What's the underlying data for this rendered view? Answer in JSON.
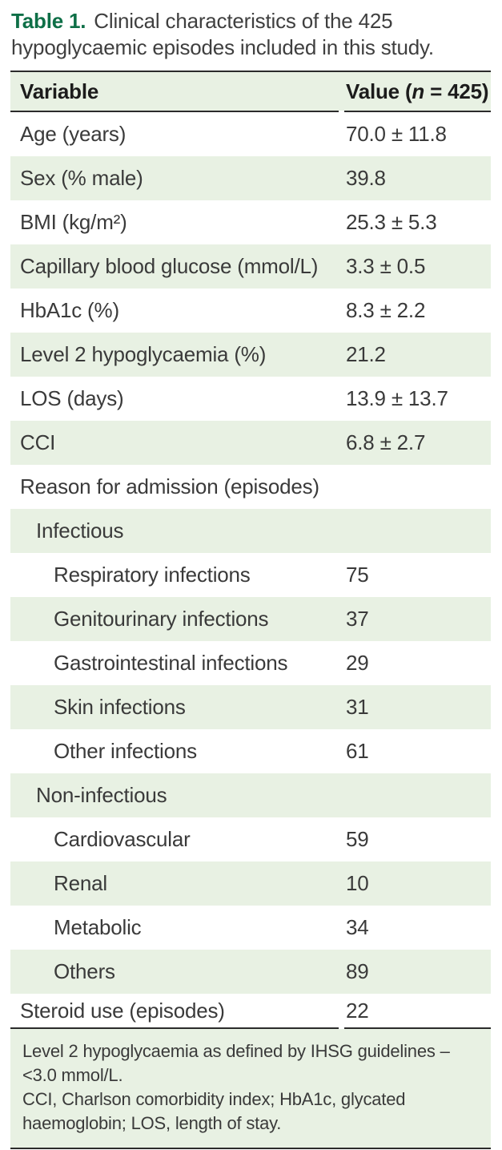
{
  "colors": {
    "accent_green": "#0e6f47",
    "row_shade_green": "#e8f1e3",
    "rule_dark": "#2b2b2b",
    "body_text": "#3a3a3a"
  },
  "caption": {
    "label": "Table 1.",
    "text": "Clinical characteristics of the 425 hypoglycaemic episodes included in this study."
  },
  "table": {
    "header": {
      "variable": "Variable",
      "value_prefix": "Value (",
      "value_n": "n",
      "value_suffix": " = 425)"
    },
    "rows": [
      {
        "label": "Age (years)",
        "value": "70.0 ± 11.8",
        "indent": 0,
        "shaded": false
      },
      {
        "label": "Sex (% male)",
        "value": "39.8",
        "indent": 0,
        "shaded": true
      },
      {
        "label": "BMI (kg/m²)",
        "value": "25.3 ± 5.3",
        "indent": 0,
        "shaded": false
      },
      {
        "label": "Capillary blood glucose (mmol/L)",
        "value": "3.3 ± 0.5",
        "indent": 0,
        "shaded": true
      },
      {
        "label": "HbA1c (%)",
        "value": "8.3 ± 2.2",
        "indent": 0,
        "shaded": false
      },
      {
        "label": "Level 2 hypoglycaemia (%)",
        "value": "21.2",
        "indent": 0,
        "shaded": true
      },
      {
        "label": "LOS (days)",
        "value": "13.9 ± 13.7",
        "indent": 0,
        "shaded": false
      },
      {
        "label": "CCI",
        "value": "6.8 ± 2.7",
        "indent": 0,
        "shaded": true
      },
      {
        "label": "Reason for admission (episodes)",
        "value": "",
        "indent": 0,
        "shaded": false
      },
      {
        "label": "Infectious",
        "value": "",
        "indent": 1,
        "shaded": true
      },
      {
        "label": "Respiratory infections",
        "value": "75",
        "indent": 2,
        "shaded": false
      },
      {
        "label": "Genitourinary infections",
        "value": "37",
        "indent": 2,
        "shaded": true
      },
      {
        "label": "Gastrointestinal infections",
        "value": "29",
        "indent": 2,
        "shaded": false
      },
      {
        "label": "Skin infections",
        "value": "31",
        "indent": 2,
        "shaded": true
      },
      {
        "label": "Other infections",
        "value": "61",
        "indent": 2,
        "shaded": false
      },
      {
        "label": "Non-infectious",
        "value": "",
        "indent": 1,
        "shaded": true
      },
      {
        "label": "Cardiovascular",
        "value": "59",
        "indent": 2,
        "shaded": false
      },
      {
        "label": "Renal",
        "value": "10",
        "indent": 2,
        "shaded": true
      },
      {
        "label": "Metabolic",
        "value": "34",
        "indent": 2,
        "shaded": false
      },
      {
        "label": "Others",
        "value": "89",
        "indent": 2,
        "shaded": true
      },
      {
        "label": "Steroid use (episodes)",
        "value": "22",
        "indent": 0,
        "shaded": false
      }
    ]
  },
  "footnote": {
    "line1": "Level 2 hypoglycaemia as defined by IHSG guidelines – <3.0 mmol/L.",
    "line2": "CCI, Charlson comorbidity index; HbA1c, glycated haemoglobin; LOS, length of stay."
  }
}
